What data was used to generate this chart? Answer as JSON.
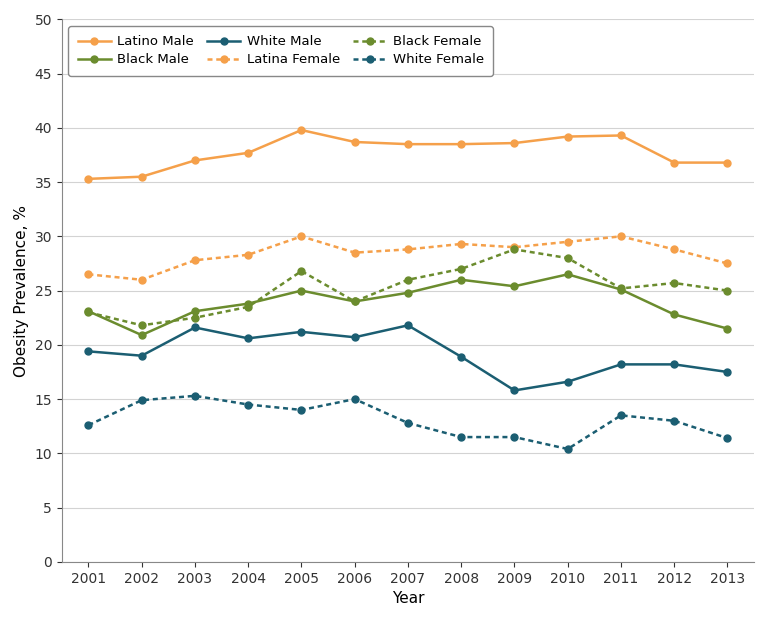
{
  "years": [
    2001,
    2002,
    2003,
    2004,
    2005,
    2006,
    2007,
    2008,
    2009,
    2010,
    2011,
    2012,
    2013
  ],
  "latino_male": [
    35.3,
    35.5,
    37.0,
    37.7,
    39.8,
    38.7,
    38.5,
    38.5,
    38.6,
    39.2,
    39.3,
    36.8,
    36.8
  ],
  "latina_female": [
    26.5,
    26.0,
    27.8,
    28.3,
    30.0,
    28.5,
    28.8,
    29.3,
    29.0,
    29.5,
    30.0,
    28.8,
    27.5
  ],
  "black_male": [
    23.1,
    20.9,
    23.1,
    23.8,
    25.0,
    24.0,
    24.8,
    26.0,
    25.4,
    26.5,
    25.1,
    22.8,
    21.5
  ],
  "black_female": [
    23.0,
    21.8,
    22.5,
    23.5,
    26.8,
    24.0,
    26.0,
    27.0,
    28.8,
    28.0,
    25.2,
    25.7,
    25.0
  ],
  "white_male": [
    19.4,
    19.0,
    21.6,
    20.6,
    21.2,
    20.7,
    21.8,
    18.9,
    15.8,
    16.6,
    18.2,
    18.2,
    17.5
  ],
  "white_female": [
    12.6,
    14.9,
    15.3,
    14.5,
    14.0,
    15.0,
    12.8,
    11.5,
    11.5,
    10.4,
    13.5,
    13.0,
    11.4
  ],
  "orange_color": "#F5A04A",
  "olive_color": "#6B8C2E",
  "teal_color": "#1B5E72",
  "ylabel": "Obesity Prevalence, %",
  "xlabel": "Year",
  "ylim": [
    0,
    50
  ],
  "yticks": [
    0,
    5,
    10,
    15,
    20,
    25,
    30,
    35,
    40,
    45,
    50
  ],
  "legend_labels_row1": [
    "Latino Male",
    "Black Male",
    "White Male"
  ],
  "legend_labels_row2": [
    "Latina Female",
    "Black Female",
    "White Female"
  ],
  "figsize": [
    7.68,
    6.2
  ],
  "dpi": 100
}
